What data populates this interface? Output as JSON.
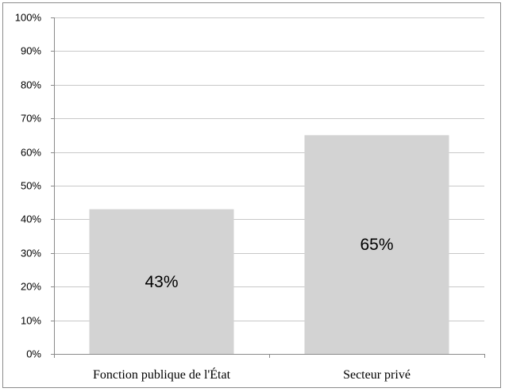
{
  "chart_data": {
    "type": "bar",
    "categories": [
      "Fonction publique de l'État",
      "Secteur privé"
    ],
    "values": [
      43,
      65
    ],
    "data_labels": [
      "43%",
      "65%"
    ],
    "title": "",
    "xlabel": "",
    "ylabel": "",
    "ylim": [
      0,
      100
    ],
    "y_ticks": [
      0,
      10,
      20,
      30,
      40,
      50,
      60,
      70,
      80,
      90,
      100
    ],
    "y_tick_labels": [
      "0%",
      "10%",
      "20%",
      "30%",
      "40%",
      "50%",
      "60%",
      "70%",
      "80%",
      "90%",
      "100%"
    ],
    "grid": true,
    "legend": "none",
    "bar_color": "#d3d3d3",
    "grid_color": "#c8c8c8"
  }
}
